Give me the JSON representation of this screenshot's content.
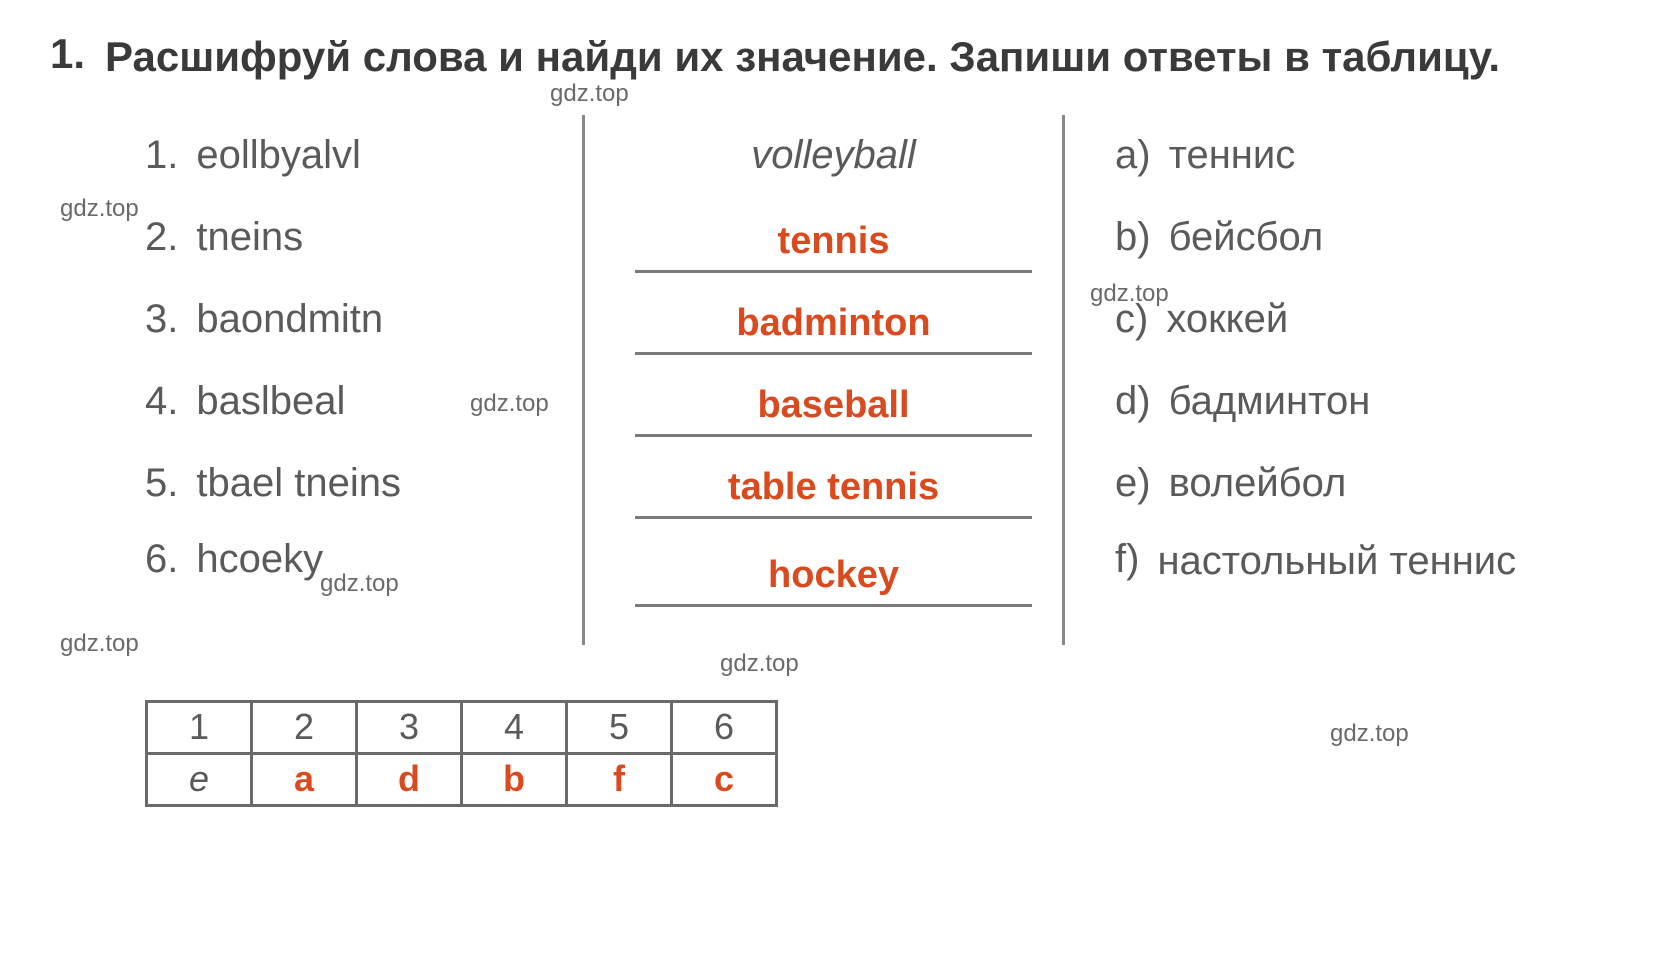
{
  "task": {
    "number": "1.",
    "instruction": "Расшифруй слова и найди их значение. Запиши ответы в таблицу."
  },
  "watermarks": {
    "w1": "gdz.top",
    "w2": "gdz.top",
    "w3": "gdz.top",
    "w4": "gdz.top",
    "w5": "gdz.top",
    "w6": "gdz.top",
    "w7": "gdz.top",
    "w8": "gdz.top"
  },
  "scrambled": {
    "items": [
      {
        "num": "1.",
        "text": "eollbyalvl"
      },
      {
        "num": "2.",
        "text": "tneins"
      },
      {
        "num": "3.",
        "text": "baondmitn"
      },
      {
        "num": "4.",
        "text": "baslbeal"
      },
      {
        "num": "5.",
        "text": "tbael tneins"
      },
      {
        "num": "6.",
        "text": "hcoeky"
      }
    ]
  },
  "answers": {
    "example": "volleyball",
    "filled": [
      {
        "text": "tennis"
      },
      {
        "text": "badminton"
      },
      {
        "text": "baseball"
      },
      {
        "text": "table tennis"
      },
      {
        "text": "hockey"
      }
    ]
  },
  "translations": {
    "items": [
      {
        "letter": "a)",
        "text": "теннис"
      },
      {
        "letter": "b)",
        "text": "бейсбол"
      },
      {
        "letter": "c)",
        "text": "хоккей"
      },
      {
        "letter": "d)",
        "text": "бадминтон"
      },
      {
        "letter": "e)",
        "text": "волейбол"
      },
      {
        "letter": "f)",
        "text": "настольный теннис"
      }
    ]
  },
  "table": {
    "header": [
      "1",
      "2",
      "3",
      "4",
      "5",
      "6"
    ],
    "row": [
      "e",
      "a",
      "d",
      "b",
      "f",
      "c"
    ]
  },
  "colors": {
    "red_answer": "#d94a1f",
    "text": "#5a5a5a",
    "border": "#7a7a7a",
    "bg": "#ffffff"
  },
  "typography": {
    "header_fontsize": 42,
    "body_fontsize": 40,
    "watermark_fontsize": 24,
    "table_fontsize": 36,
    "font_family": "Arial"
  }
}
